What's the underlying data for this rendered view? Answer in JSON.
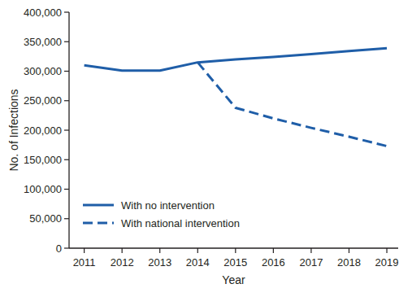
{
  "chart_data": {
    "type": "line",
    "x_label": "Year",
    "y_label": "No. of Infections",
    "x": [
      2011,
      2012,
      2013,
      2014,
      2015,
      2016,
      2017,
      2018,
      2019
    ],
    "series": [
      {
        "name": "With no intervention",
        "color": "#1f5ea8",
        "line_style": "solid",
        "values": [
          310000,
          301000,
          301000,
          315000,
          320000,
          324000,
          329000,
          334000,
          339000
        ]
      },
      {
        "name": "With national intervention",
        "color": "#1f5ea8",
        "line_style": "dashed",
        "values": [
          null,
          null,
          null,
          315000,
          238000,
          220000,
          204000,
          189000,
          173000
        ]
      }
    ],
    "xlim": [
      2010.6,
      2019.3
    ],
    "xticks": [
      2011,
      2012,
      2013,
      2014,
      2015,
      2016,
      2017,
      2018,
      2019
    ],
    "ylim": [
      0,
      400000
    ],
    "yticks": [
      0,
      {
        "value": 50000,
        "label": "50,000"
      },
      {
        "value": 100000,
        "label": "100,000"
      },
      {
        "value": 150000,
        "label": "150,000"
      },
      {
        "value": 200000,
        "label": "200,000"
      },
      {
        "value": 250000,
        "label": "250,000"
      },
      {
        "value": 300000,
        "label": "300,000"
      },
      {
        "value": 350000,
        "label": "350,000"
      },
      {
        "value": 400000,
        "label": "400,000"
      }
    ],
    "grid": false,
    "legend": "lower left"
  }
}
